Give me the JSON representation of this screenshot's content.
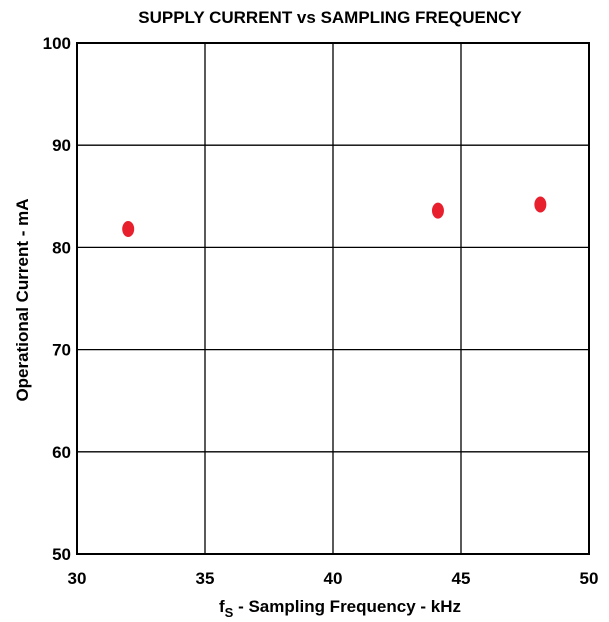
{
  "chart_data": {
    "type": "scatter",
    "title": "SUPPLY CURRENT vs SAMPLING FREQUENCY",
    "xlabel_main": "f",
    "xlabel_sub": "S",
    "xlabel_rest": " - Sampling Frequency - kHz",
    "ylabel": "Operational Current - mA",
    "xlim": [
      30,
      50
    ],
    "ylim": [
      50,
      100
    ],
    "x_ticks": [
      30,
      35,
      40,
      45,
      50
    ],
    "y_ticks": [
      50,
      60,
      70,
      80,
      90,
      100
    ],
    "grid": true,
    "marker_color": "#e8202e",
    "points": [
      {
        "x": 32,
        "y": 81.8
      },
      {
        "x": 44.1,
        "y": 83.6
      },
      {
        "x": 48.1,
        "y": 84.2
      }
    ]
  }
}
